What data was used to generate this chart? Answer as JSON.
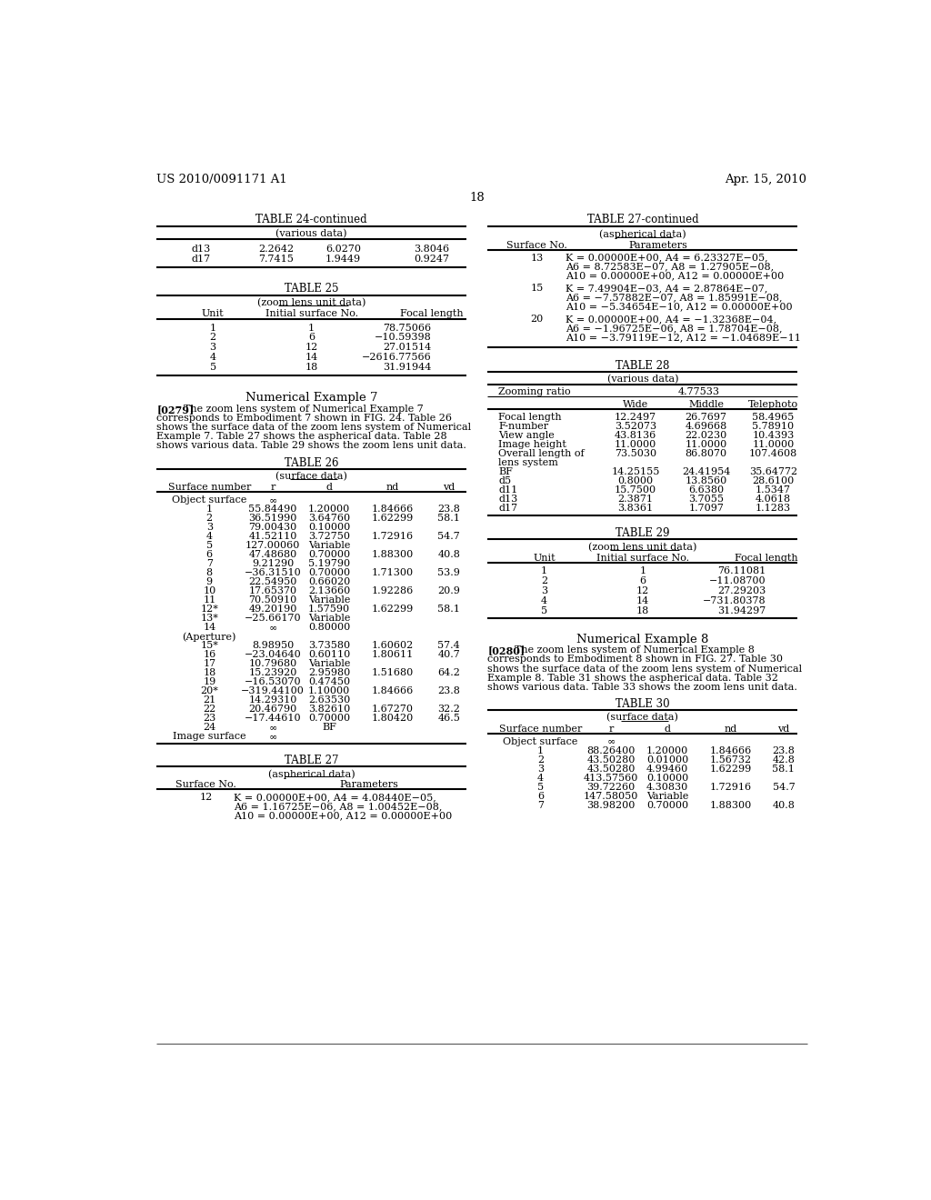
{
  "bg_color": "#ffffff",
  "header_left": "US 2010/0091171 A1",
  "header_right": "Apr. 15, 2010",
  "page_number": "18",
  "left_column": {
    "table24_continued": {
      "title": "TABLE 24-continued",
      "subtitle": "(various data)",
      "rows": [
        [
          "d13",
          "2.2642",
          "6.0270",
          "3.8046"
        ],
        [
          "d17",
          "7.7415",
          "1.9449",
          "0.9247"
        ]
      ]
    },
    "table25": {
      "title": "TABLE 25",
      "subtitle": "(zoom lens unit data)",
      "col_headers": [
        "Unit",
        "Initial surface No.",
        "Focal length"
      ],
      "rows": [
        [
          "1",
          "1",
          "78.75066"
        ],
        [
          "2",
          "6",
          "−10.59398"
        ],
        [
          "3",
          "12",
          "27.01514"
        ],
        [
          "4",
          "14",
          "−2616.77566"
        ],
        [
          "5",
          "18",
          "31.91944"
        ]
      ]
    },
    "numerical_example7_title": "Numerical Example 7",
    "numerical_example7_text_tag": "[0279]",
    "numerical_example7_text_body": "   The zoom lens system of Numerical Example 7\ncorresponds to Embodiment 7 shown in FIG. 24. Table 26\nshows the surface data of the zoom lens system of Numerical\nExample 7. Table 27 shows the aspherical data. Table 28\nshows various data. Table 29 shows the zoom lens unit data.",
    "table26": {
      "title": "TABLE 26",
      "subtitle": "(surface data)",
      "col_headers": [
        "Surface number",
        "r",
        "d",
        "nd",
        "vd"
      ],
      "rows": [
        [
          "Object surface",
          "∞",
          "",
          "",
          ""
        ],
        [
          "1",
          "55.84490",
          "1.20000",
          "1.84666",
          "23.8"
        ],
        [
          "2",
          "36.51990",
          "3.64760",
          "1.62299",
          "58.1"
        ],
        [
          "3",
          "79.00430",
          "0.10000",
          "",
          ""
        ],
        [
          "4",
          "41.52110",
          "3.72750",
          "1.72916",
          "54.7"
        ],
        [
          "5",
          "127.00060",
          "Variable",
          "",
          ""
        ],
        [
          "6",
          "47.48680",
          "0.70000",
          "1.88300",
          "40.8"
        ],
        [
          "7",
          "9.21290",
          "5.19790",
          "",
          ""
        ],
        [
          "8",
          "−36.31510",
          "0.70000",
          "1.71300",
          "53.9"
        ],
        [
          "9",
          "22.54950",
          "0.66020",
          "",
          ""
        ],
        [
          "10",
          "17.65370",
          "2.13660",
          "1.92286",
          "20.9"
        ],
        [
          "11",
          "70.50910",
          "Variable",
          "",
          ""
        ],
        [
          "12*",
          "49.20190",
          "1.57590",
          "1.62299",
          "58.1"
        ],
        [
          "13*",
          "−25.66170",
          "Variable",
          "",
          ""
        ],
        [
          "14",
          "∞",
          "0.80000",
          "",
          ""
        ],
        [
          "(Aperture)",
          "",
          "",
          "",
          ""
        ],
        [
          "15*",
          "8.98950",
          "3.73580",
          "1.60602",
          "57.4"
        ],
        [
          "16",
          "−23.04640",
          "0.60110",
          "1.80611",
          "40.7"
        ],
        [
          "17",
          "10.79680",
          "Variable",
          "",
          ""
        ],
        [
          "18",
          "15.23920",
          "2.95980",
          "1.51680",
          "64.2"
        ],
        [
          "19",
          "−16.53070",
          "0.47450",
          "",
          ""
        ],
        [
          "20*",
          "−319.44100",
          "1.10000",
          "1.84666",
          "23.8"
        ],
        [
          "21",
          "14.29310",
          "2.63530",
          "",
          ""
        ],
        [
          "22",
          "20.46790",
          "3.82610",
          "1.67270",
          "32.2"
        ],
        [
          "23",
          "−17.44610",
          "0.70000",
          "1.80420",
          "46.5"
        ],
        [
          "24",
          "∞",
          "BF",
          "",
          ""
        ],
        [
          "Image surface",
          "∞",
          "",
          "",
          ""
        ]
      ]
    },
    "table27": {
      "title": "TABLE 27",
      "subtitle": "(aspherical data)",
      "col_headers": [
        "Surface No.",
        "Parameters"
      ],
      "rows": [
        [
          "12",
          "K = 0.00000E+00, A4 = 4.08440E−05,\nA6 = 1.16725E−06, A8 = 1.00452E−08,\nA10 = 0.00000E+00, A12 = 0.00000E+00"
        ]
      ]
    }
  },
  "right_column": {
    "table27_continued": {
      "title": "TABLE 27-continued",
      "subtitle": "(aspherical data)",
      "col_headers": [
        "Surface No.",
        "Parameters"
      ],
      "rows": [
        [
          "13",
          "K = 0.00000E+00, A4 = 6.23327E−05,\nA6 = 8.72583E−07, A8 = 1.27905E−08,\nA10 = 0.00000E+00, A12 = 0.00000E+00"
        ],
        [
          "15",
          "K = 7.49904E−03, A4 = 2.87864E−07,\nA6 = −7.57882E−07, A8 = 1.85991E−08,\nA10 = −5.34654E−10, A12 = 0.00000E+00"
        ],
        [
          "20",
          "K = 0.00000E+00, A4 = −1.32368E−04,\nA6 = −1.96725E−06, A8 = 1.78704E−08,\nA10 = −3.79119E−12, A12 = −1.04689E−11"
        ]
      ]
    },
    "table28": {
      "title": "TABLE 28",
      "subtitle": "(various data)",
      "zooming_ratio_label": "Zooming ratio",
      "zooming_ratio": "4.77533",
      "col_headers": [
        "",
        "Wide",
        "Middle",
        "Telephoto"
      ],
      "rows": [
        [
          "Focal length",
          "12.2497",
          "26.7697",
          "58.4965"
        ],
        [
          "F-number",
          "3.52073",
          "4.69668",
          "5.78910"
        ],
        [
          "View angle",
          "43.8136",
          "22.0230",
          "10.4393"
        ],
        [
          "Image height",
          "11.0000",
          "11.0000",
          "11.0000"
        ],
        [
          "Overall length of",
          "73.5030",
          "86.8070",
          "107.4608"
        ],
        [
          "lens system",
          "",
          "",
          ""
        ],
        [
          "BF",
          "14.25155",
          "24.41954",
          "35.64772"
        ],
        [
          "d5",
          "0.8000",
          "13.8560",
          "28.6100"
        ],
        [
          "d11",
          "15.7500",
          "6.6380",
          "1.5347"
        ],
        [
          "d13",
          "2.3871",
          "3.7055",
          "4.0618"
        ],
        [
          "d17",
          "3.8361",
          "1.7097",
          "1.1283"
        ]
      ]
    },
    "table29": {
      "title": "TABLE 29",
      "subtitle": "(zoom lens unit data)",
      "col_headers": [
        "Unit",
        "Initial surface No.",
        "Focal length"
      ],
      "rows": [
        [
          "1",
          "1",
          "76.11081"
        ],
        [
          "2",
          "6",
          "−11.08700"
        ],
        [
          "3",
          "12",
          "27.29203"
        ],
        [
          "4",
          "14",
          "−731.80378"
        ],
        [
          "5",
          "18",
          "31.94297"
        ]
      ]
    },
    "numerical_example8_title": "Numerical Example 8",
    "numerical_example8_text_tag": "[0280]",
    "numerical_example8_text_body": "   The zoom lens system of Numerical Example 8\ncorresponds to Embodiment 8 shown in FIG. 27. Table 30\nshows the surface data of the zoom lens system of Numerical\nExample 8. Table 31 shows the aspherical data. Table 32\nshows various data. Table 33 shows the zoom lens unit data.",
    "table30": {
      "title": "TABLE 30",
      "subtitle": "(surface data)",
      "col_headers": [
        "Surface number",
        "r",
        "d",
        "nd",
        "vd"
      ],
      "rows": [
        [
          "Object surface",
          "∞",
          "",
          "",
          ""
        ],
        [
          "1",
          "88.26400",
          "1.20000",
          "1.84666",
          "23.8"
        ],
        [
          "2",
          "43.50280",
          "0.01000",
          "1.56732",
          "42.8"
        ],
        [
          "3",
          "43.50280",
          "4.99460",
          "1.62299",
          "58.1"
        ],
        [
          "4",
          "413.57560",
          "0.10000",
          "",
          ""
        ],
        [
          "5",
          "39.72260",
          "4.30830",
          "1.72916",
          "54.7"
        ],
        [
          "6",
          "147.58050",
          "Variable",
          "",
          ""
        ],
        [
          "7",
          "38.98200",
          "0.70000",
          "1.88300",
          "40.8"
        ]
      ]
    }
  }
}
